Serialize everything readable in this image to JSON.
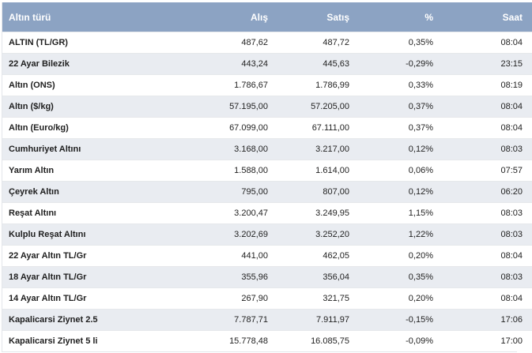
{
  "table": {
    "headers": {
      "name": "Altın türü",
      "alis": "Alış",
      "satis": "Satış",
      "pct": "%",
      "saat": "Saat"
    },
    "rows": [
      {
        "name": "ALTIN (TL/GR)",
        "alis": "487,62",
        "satis": "487,72",
        "pct": "0,35%",
        "saat": "08:04"
      },
      {
        "name": "22 Ayar Bilezik",
        "alis": "443,24",
        "satis": "445,63",
        "pct": "-0,29%",
        "saat": "23:15"
      },
      {
        "name": "Altın (ONS)",
        "alis": "1.786,67",
        "satis": "1.786,99",
        "pct": "0,33%",
        "saat": "08:19"
      },
      {
        "name": "Altın ($/kg)",
        "alis": "57.195,00",
        "satis": "57.205,00",
        "pct": "0,37%",
        "saat": "08:04"
      },
      {
        "name": "Altın (Euro/kg)",
        "alis": "67.099,00",
        "satis": "67.111,00",
        "pct": "0,37%",
        "saat": "08:04"
      },
      {
        "name": "Cumhuriyet Altını",
        "alis": "3.168,00",
        "satis": "3.217,00",
        "pct": "0,12%",
        "saat": "08:03"
      },
      {
        "name": "Yarım Altın",
        "alis": "1.588,00",
        "satis": "1.614,00",
        "pct": "0,06%",
        "saat": "07:57"
      },
      {
        "name": "Çeyrek Altın",
        "alis": "795,00",
        "satis": "807,00",
        "pct": "0,12%",
        "saat": "06:20"
      },
      {
        "name": "Reşat Altını",
        "alis": "3.200,47",
        "satis": "3.249,95",
        "pct": "1,15%",
        "saat": "08:03"
      },
      {
        "name": "Kulplu Reşat Altını",
        "alis": "3.202,69",
        "satis": "3.252,20",
        "pct": "1,22%",
        "saat": "08:03"
      },
      {
        "name": "22 Ayar Altın TL/Gr",
        "alis": "441,00",
        "satis": "462,05",
        "pct": "0,20%",
        "saat": "08:04"
      },
      {
        "name": "18 Ayar Altın TL/Gr",
        "alis": "355,96",
        "satis": "356,04",
        "pct": "0,35%",
        "saat": "08:03"
      },
      {
        "name": "14 Ayar Altın TL/Gr",
        "alis": "267,90",
        "satis": "321,75",
        "pct": "0,20%",
        "saat": "08:04"
      },
      {
        "name": "Kapalicarsi Ziynet 2.5",
        "alis": "7.787,71",
        "satis": "7.911,97",
        "pct": "-0,15%",
        "saat": "17:06"
      },
      {
        "name": "Kapalicarsi Ziynet 5 li",
        "alis": "15.778,48",
        "satis": "16.085,75",
        "pct": "-0,09%",
        "saat": "17:00"
      }
    ]
  }
}
